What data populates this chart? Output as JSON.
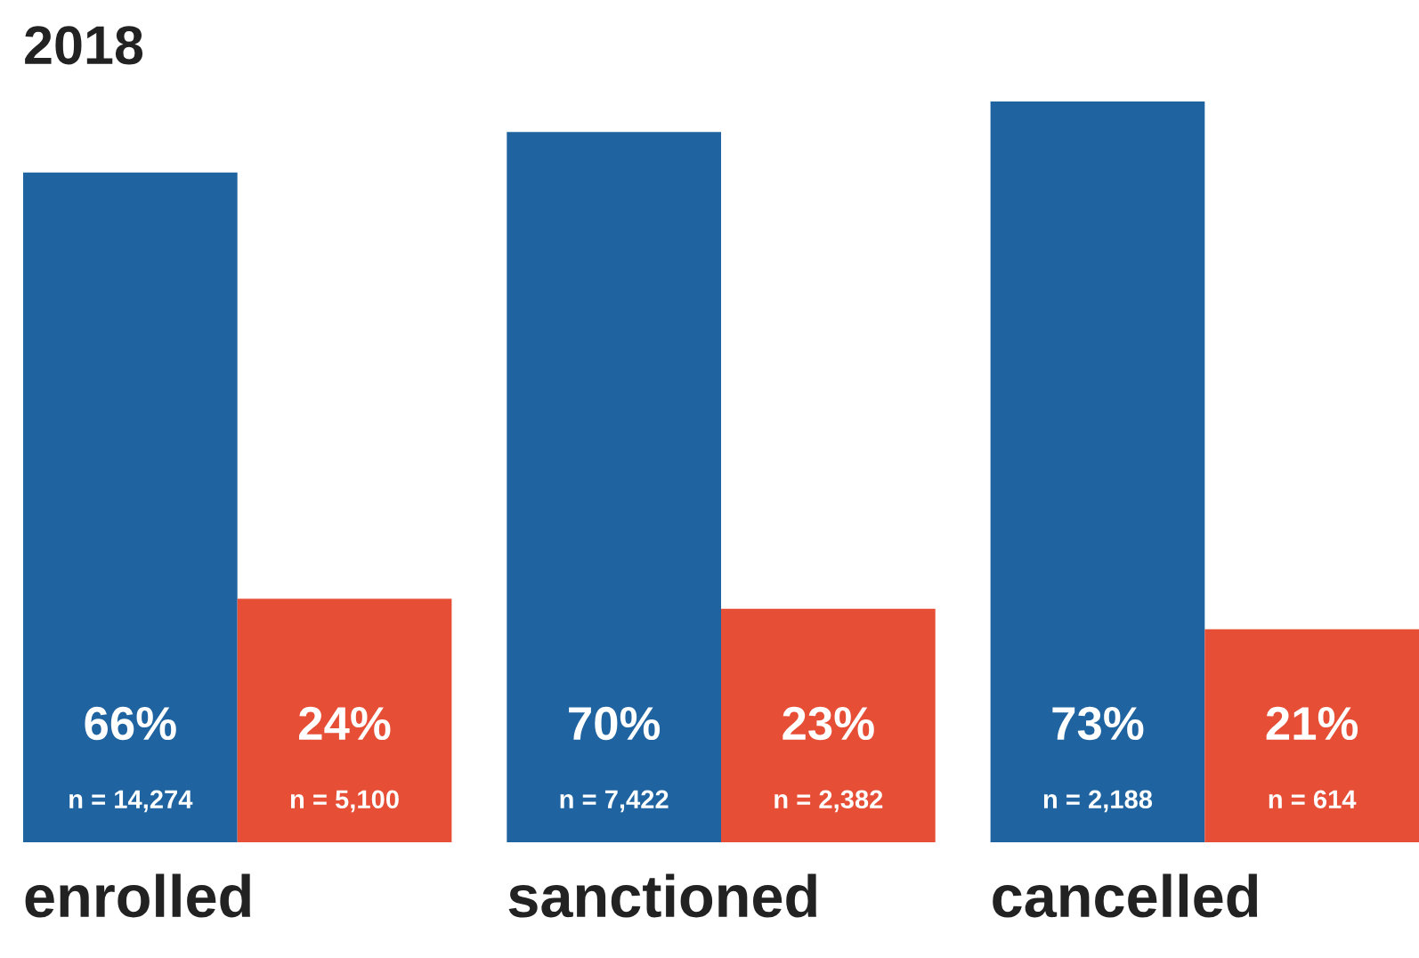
{
  "chart_data": {
    "type": "bar",
    "title": "2018",
    "categories": [
      "enrolled",
      "sanctioned",
      "cancelled"
    ],
    "series": [
      {
        "color": "#1f64a0",
        "values": [
          66,
          70,
          73
        ],
        "value_labels": [
          "66%\nn = 14,274",
          "70%\nn = 7,422",
          "73%\nn = 2,188"
        ]
      },
      {
        "color": "#e64e36",
        "values": [
          24,
          23,
          21
        ],
        "value_labels": [
          "24%\nn = 5,100",
          "23%\nn = 2,382",
          "21%\nn = 614"
        ]
      }
    ],
    "legend": false
  }
}
